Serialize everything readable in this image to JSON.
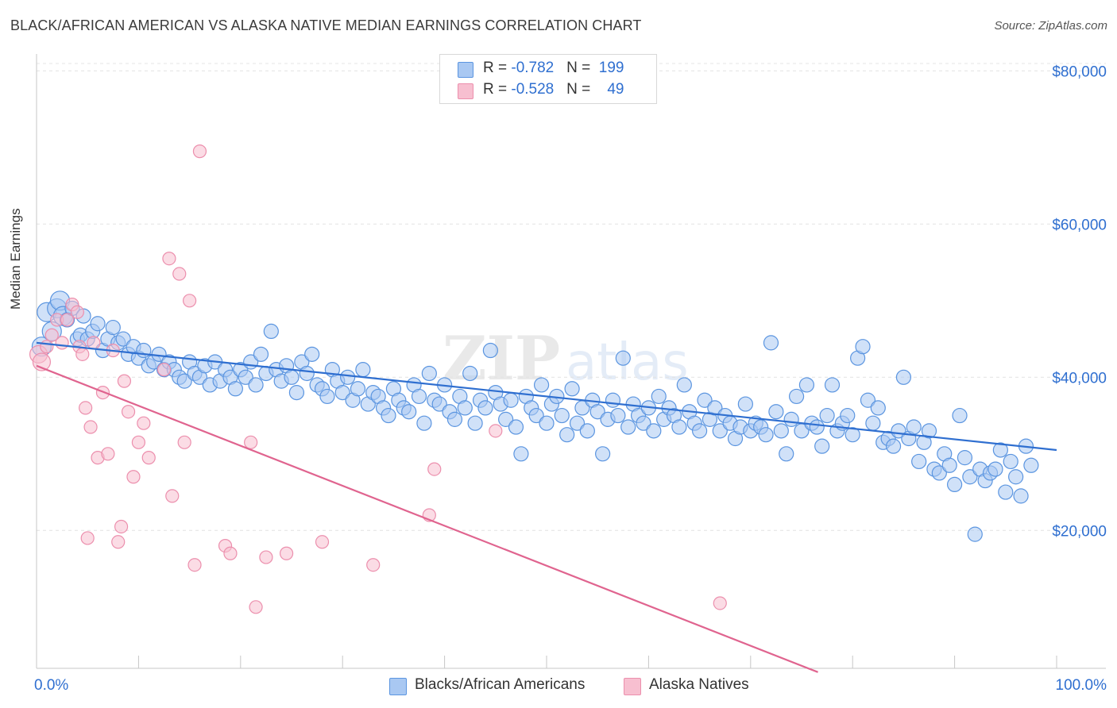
{
  "title": "BLACK/AFRICAN AMERICAN VS ALASKA NATIVE MEDIAN EARNINGS CORRELATION CHART",
  "source": "Source: ZipAtlas.com",
  "stats": [
    {
      "r_label": "R = ",
      "r": "-0.782",
      "n_label": "N = ",
      "n": "199"
    },
    {
      "r_label": "R = ",
      "r": "-0.528",
      "n_label": "N = ",
      "n": "49"
    }
  ],
  "colors": {
    "blue_fill": "#a9c8f2",
    "blue_stroke": "#5b95e0",
    "blue_line": "#2f6fd0",
    "pink_fill": "#f7bfd0",
    "pink_stroke": "#ec8fad",
    "pink_line": "#e0648f",
    "axis_label": "#2f6fd0"
  },
  "chart_data": {
    "type": "scatter",
    "title": "BLACK/AFRICAN AMERICAN VS ALASKA NATIVE MEDIAN EARNINGS CORRELATION CHART",
    "xlabel": "",
    "ylabel": "Median Earnings",
    "xlim": [
      0,
      100
    ],
    "ylim": [
      2000,
      82000
    ],
    "x_tick_labels": [
      "0.0%",
      "100.0%"
    ],
    "y_ticks": [
      20000,
      40000,
      60000,
      80000
    ],
    "y_tick_labels": [
      "$20,000",
      "$40,000",
      "$60,000",
      "$80,000"
    ],
    "grid": "horizontal dashed",
    "legend_position": "bottom-center",
    "series": [
      {
        "name": "Blacks/African Americans",
        "trend": {
          "x": [
            0,
            100
          ],
          "y": [
            44500,
            30500
          ]
        },
        "points": [
          [
            0.5,
            44000
          ],
          [
            1,
            48500
          ],
          [
            1.5,
            46000
          ],
          [
            2,
            49000
          ],
          [
            2.3,
            50000
          ],
          [
            2.6,
            48000
          ],
          [
            3,
            47500
          ],
          [
            3.5,
            49000
          ],
          [
            4,
            45000
          ],
          [
            4.3,
            45500
          ],
          [
            4.6,
            48000
          ],
          [
            5,
            45000
          ],
          [
            5.5,
            46000
          ],
          [
            6,
            47000
          ],
          [
            6.5,
            43500
          ],
          [
            7,
            45000
          ],
          [
            7.5,
            46500
          ],
          [
            8,
            44500
          ],
          [
            8.5,
            45000
          ],
          [
            9,
            43000
          ],
          [
            9.5,
            44000
          ],
          [
            10,
            42500
          ],
          [
            10.5,
            43500
          ],
          [
            11,
            41500
          ],
          [
            11.5,
            42000
          ],
          [
            12,
            43000
          ],
          [
            12.5,
            41000
          ],
          [
            13,
            42000
          ],
          [
            13.5,
            41000
          ],
          [
            14,
            40000
          ],
          [
            14.5,
            39500
          ],
          [
            15,
            42000
          ],
          [
            15.5,
            40500
          ],
          [
            16,
            40000
          ],
          [
            16.5,
            41500
          ],
          [
            17,
            39000
          ],
          [
            17.5,
            42000
          ],
          [
            18,
            39500
          ],
          [
            18.5,
            41000
          ],
          [
            19,
            40000
          ],
          [
            19.5,
            38500
          ],
          [
            20,
            41000
          ],
          [
            20.5,
            40000
          ],
          [
            21,
            42000
          ],
          [
            21.5,
            39000
          ],
          [
            22,
            43000
          ],
          [
            22.5,
            40500
          ],
          [
            23,
            46000
          ],
          [
            23.5,
            41000
          ],
          [
            24,
            39500
          ],
          [
            24.5,
            41500
          ],
          [
            25,
            40000
          ],
          [
            25.5,
            38000
          ],
          [
            26,
            42000
          ],
          [
            26.5,
            40500
          ],
          [
            27,
            43000
          ],
          [
            27.5,
            39000
          ],
          [
            28,
            38500
          ],
          [
            28.5,
            37500
          ],
          [
            29,
            41000
          ],
          [
            29.5,
            39500
          ],
          [
            30,
            38000
          ],
          [
            30.5,
            40000
          ],
          [
            31,
            37000
          ],
          [
            31.5,
            38500
          ],
          [
            32,
            41000
          ],
          [
            32.5,
            36500
          ],
          [
            33,
            38000
          ],
          [
            33.5,
            37500
          ],
          [
            34,
            36000
          ],
          [
            34.5,
            35000
          ],
          [
            35,
            38500
          ],
          [
            35.5,
            37000
          ],
          [
            36,
            36000
          ],
          [
            36.5,
            35500
          ],
          [
            37,
            39000
          ],
          [
            37.5,
            37500
          ],
          [
            38,
            34000
          ],
          [
            38.5,
            40500
          ],
          [
            39,
            37000
          ],
          [
            39.5,
            36500
          ],
          [
            40,
            39000
          ],
          [
            40.5,
            35500
          ],
          [
            41,
            34500
          ],
          [
            41.5,
            37500
          ],
          [
            42,
            36000
          ],
          [
            42.5,
            40500
          ],
          [
            43,
            34000
          ],
          [
            43.5,
            37000
          ],
          [
            44,
            36000
          ],
          [
            44.5,
            43500
          ],
          [
            45,
            38000
          ],
          [
            45.5,
            36500
          ],
          [
            46,
            34500
          ],
          [
            46.5,
            37000
          ],
          [
            47,
            33500
          ],
          [
            47.5,
            30000
          ],
          [
            48,
            37500
          ],
          [
            48.5,
            36000
          ],
          [
            49,
            35000
          ],
          [
            49.5,
            39000
          ],
          [
            50,
            34000
          ],
          [
            50.5,
            36500
          ],
          [
            51,
            37500
          ],
          [
            51.5,
            35000
          ],
          [
            52,
            32500
          ],
          [
            52.5,
            38500
          ],
          [
            53,
            34000
          ],
          [
            53.5,
            36000
          ],
          [
            54,
            33000
          ],
          [
            54.5,
            37000
          ],
          [
            55,
            35500
          ],
          [
            55.5,
            30000
          ],
          [
            56,
            34500
          ],
          [
            56.5,
            37000
          ],
          [
            57,
            35000
          ],
          [
            57.5,
            42500
          ],
          [
            58,
            33500
          ],
          [
            58.5,
            36500
          ],
          [
            59,
            35000
          ],
          [
            59.5,
            34000
          ],
          [
            60,
            36000
          ],
          [
            60.5,
            33000
          ],
          [
            61,
            37500
          ],
          [
            61.5,
            34500
          ],
          [
            62,
            36000
          ],
          [
            62.5,
            35000
          ],
          [
            63,
            33500
          ],
          [
            63.5,
            39000
          ],
          [
            64,
            35500
          ],
          [
            64.5,
            34000
          ],
          [
            65,
            33000
          ],
          [
            65.5,
            37000
          ],
          [
            66,
            34500
          ],
          [
            66.5,
            36000
          ],
          [
            67,
            33000
          ],
          [
            67.5,
            35000
          ],
          [
            68,
            34000
          ],
          [
            68.5,
            32000
          ],
          [
            69,
            33500
          ],
          [
            69.5,
            36500
          ],
          [
            70,
            33000
          ],
          [
            70.5,
            34000
          ],
          [
            71,
            33500
          ],
          [
            71.5,
            32500
          ],
          [
            72,
            44500
          ],
          [
            72.5,
            35500
          ],
          [
            73,
            33000
          ],
          [
            73.5,
            30000
          ],
          [
            74,
            34500
          ],
          [
            74.5,
            37500
          ],
          [
            75,
            33000
          ],
          [
            75.5,
            39000
          ],
          [
            76,
            34000
          ],
          [
            76.5,
            33500
          ],
          [
            77,
            31000
          ],
          [
            77.5,
            35000
          ],
          [
            78,
            39000
          ],
          [
            78.5,
            33000
          ],
          [
            79,
            34000
          ],
          [
            79.5,
            35000
          ],
          [
            80,
            32500
          ],
          [
            80.5,
            42500
          ],
          [
            81,
            44000
          ],
          [
            81.5,
            37000
          ],
          [
            82,
            34000
          ],
          [
            82.5,
            36000
          ],
          [
            83,
            31500
          ],
          [
            83.5,
            32000
          ],
          [
            84,
            31000
          ],
          [
            84.5,
            33000
          ],
          [
            85,
            40000
          ],
          [
            85.5,
            32000
          ],
          [
            86,
            33500
          ],
          [
            86.5,
            29000
          ],
          [
            87,
            31500
          ],
          [
            87.5,
            33000
          ],
          [
            88,
            28000
          ],
          [
            88.5,
            27500
          ],
          [
            89,
            30000
          ],
          [
            89.5,
            28500
          ],
          [
            90,
            26000
          ],
          [
            90.5,
            35000
          ],
          [
            91,
            29500
          ],
          [
            91.5,
            27000
          ],
          [
            92,
            19500
          ],
          [
            92.5,
            28000
          ],
          [
            93,
            26500
          ],
          [
            93.5,
            27500
          ],
          [
            94,
            28000
          ],
          [
            94.5,
            30500
          ],
          [
            95,
            25000
          ],
          [
            95.5,
            29000
          ],
          [
            96,
            27000
          ],
          [
            96.5,
            24500
          ],
          [
            97,
            31000
          ],
          [
            97.5,
            28500
          ]
        ]
      },
      {
        "name": "Alaska Natives",
        "trend": {
          "x": [
            0,
            76.6
          ],
          "y": [
            41500,
            1500
          ]
        },
        "points": [
          [
            0.2,
            43000
          ],
          [
            0.5,
            42000
          ],
          [
            1,
            44000
          ],
          [
            1.5,
            45500
          ],
          [
            2,
            47500
          ],
          [
            2.5,
            44500
          ],
          [
            3,
            47500
          ],
          [
            3.5,
            49500
          ],
          [
            4,
            48500
          ],
          [
            4.2,
            44000
          ],
          [
            4.5,
            43000
          ],
          [
            4.8,
            36000
          ],
          [
            5,
            19000
          ],
          [
            5.3,
            33500
          ],
          [
            5.6,
            44500
          ],
          [
            6,
            29500
          ],
          [
            6.5,
            38000
          ],
          [
            7,
            30000
          ],
          [
            7.5,
            43500
          ],
          [
            8,
            18500
          ],
          [
            8.3,
            20500
          ],
          [
            8.6,
            39500
          ],
          [
            9,
            35500
          ],
          [
            9.5,
            27000
          ],
          [
            10,
            31500
          ],
          [
            10.5,
            34000
          ],
          [
            11,
            29500
          ],
          [
            12.5,
            41000
          ],
          [
            13,
            55500
          ],
          [
            13.3,
            24500
          ],
          [
            14,
            53500
          ],
          [
            14.5,
            31500
          ],
          [
            15,
            50000
          ],
          [
            15.5,
            15500
          ],
          [
            16,
            69500
          ],
          [
            18.5,
            18000
          ],
          [
            19,
            17000
          ],
          [
            21,
            31500
          ],
          [
            21.5,
            10000
          ],
          [
            22.5,
            16500
          ],
          [
            24.5,
            17000
          ],
          [
            28,
            18500
          ],
          [
            33,
            15500
          ],
          [
            38.5,
            22000
          ],
          [
            39,
            28000
          ],
          [
            45,
            33000
          ],
          [
            67,
            10500
          ]
        ]
      }
    ]
  },
  "legend": [
    {
      "label": "Blacks/African Americans"
    },
    {
      "label": "Alaska Natives"
    }
  ]
}
